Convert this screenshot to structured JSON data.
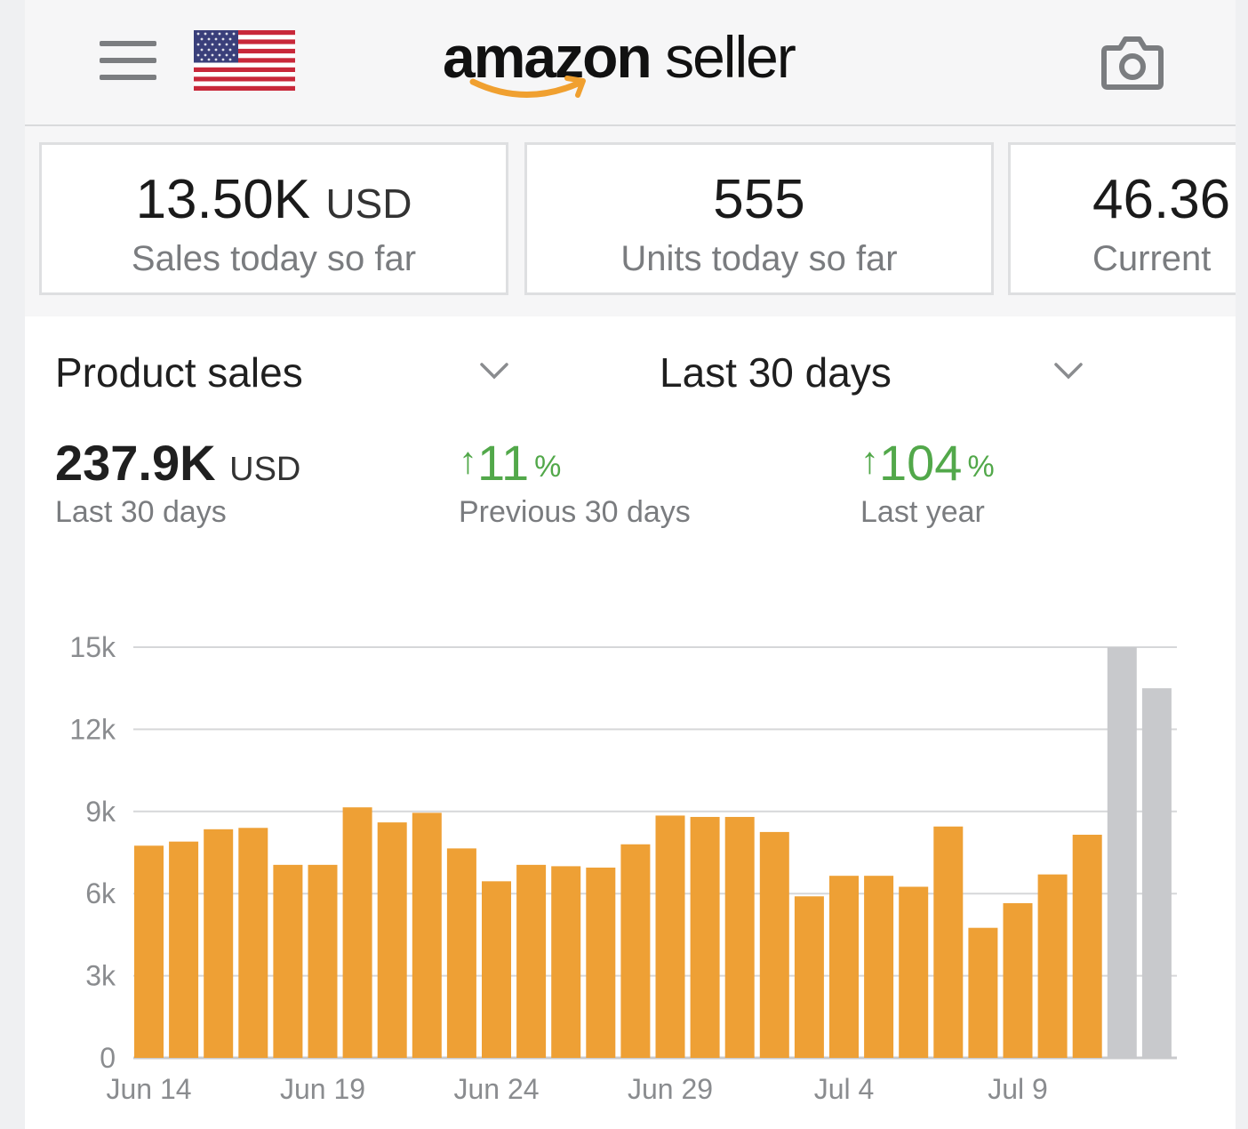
{
  "header": {
    "logo_text_bold": "amazon",
    "logo_text_light": "seller",
    "menu_icon": "hamburger-menu-icon",
    "flag_icon": "us-flag-icon",
    "camera_icon": "camera-icon"
  },
  "cards": [
    {
      "value": "13.50K",
      "unit": "USD",
      "label": "Sales today so far"
    },
    {
      "value": "555",
      "unit": "",
      "label": "Units today so far"
    },
    {
      "value": "46.36",
      "unit": "",
      "label": "Current"
    }
  ],
  "filters": {
    "metric": "Product sales",
    "range": "Last 30 days"
  },
  "summary": {
    "total_value": "237.9K",
    "total_unit": "USD",
    "total_label": "Last 30 days",
    "prev_arrow": "↑",
    "prev_value": "11",
    "prev_pct": "%",
    "prev_label": "Previous 30 days",
    "year_arrow": "↑",
    "year_value": "104",
    "year_pct": "%",
    "year_label": "Last year"
  },
  "colors": {
    "bar": "#eea035",
    "bar_ghost": "#c8c9cc",
    "positive": "#52a84a"
  },
  "chart_data": {
    "type": "bar",
    "y_ticks": [
      "0",
      "3k",
      "6k",
      "9k",
      "12k",
      "15k"
    ],
    "y_tick_values": [
      0,
      3000,
      6000,
      9000,
      12000,
      15000
    ],
    "ylim": [
      0,
      15000
    ],
    "x_tick_labels": [
      "Jun 14",
      "Jun 19",
      "Jun 24",
      "Jun 29",
      "Jul 4",
      "Jul 9"
    ],
    "x_tick_index": [
      0,
      5,
      10,
      15,
      20,
      25
    ],
    "series": [
      {
        "values": [
          7750,
          7900,
          8350,
          8400,
          7050,
          7050,
          9150,
          8600,
          8950,
          7650,
          6450,
          7050,
          7000,
          6950,
          7800,
          8850,
          8800,
          8800,
          8250,
          5900,
          6650,
          6650,
          6250,
          8450,
          4750,
          5650,
          6700,
          8150
        ],
        "color": "#eea035"
      },
      {
        "values": [
          15000,
          13500
        ],
        "color": "#c8c9cc",
        "offset": 28
      }
    ],
    "grid": true
  }
}
